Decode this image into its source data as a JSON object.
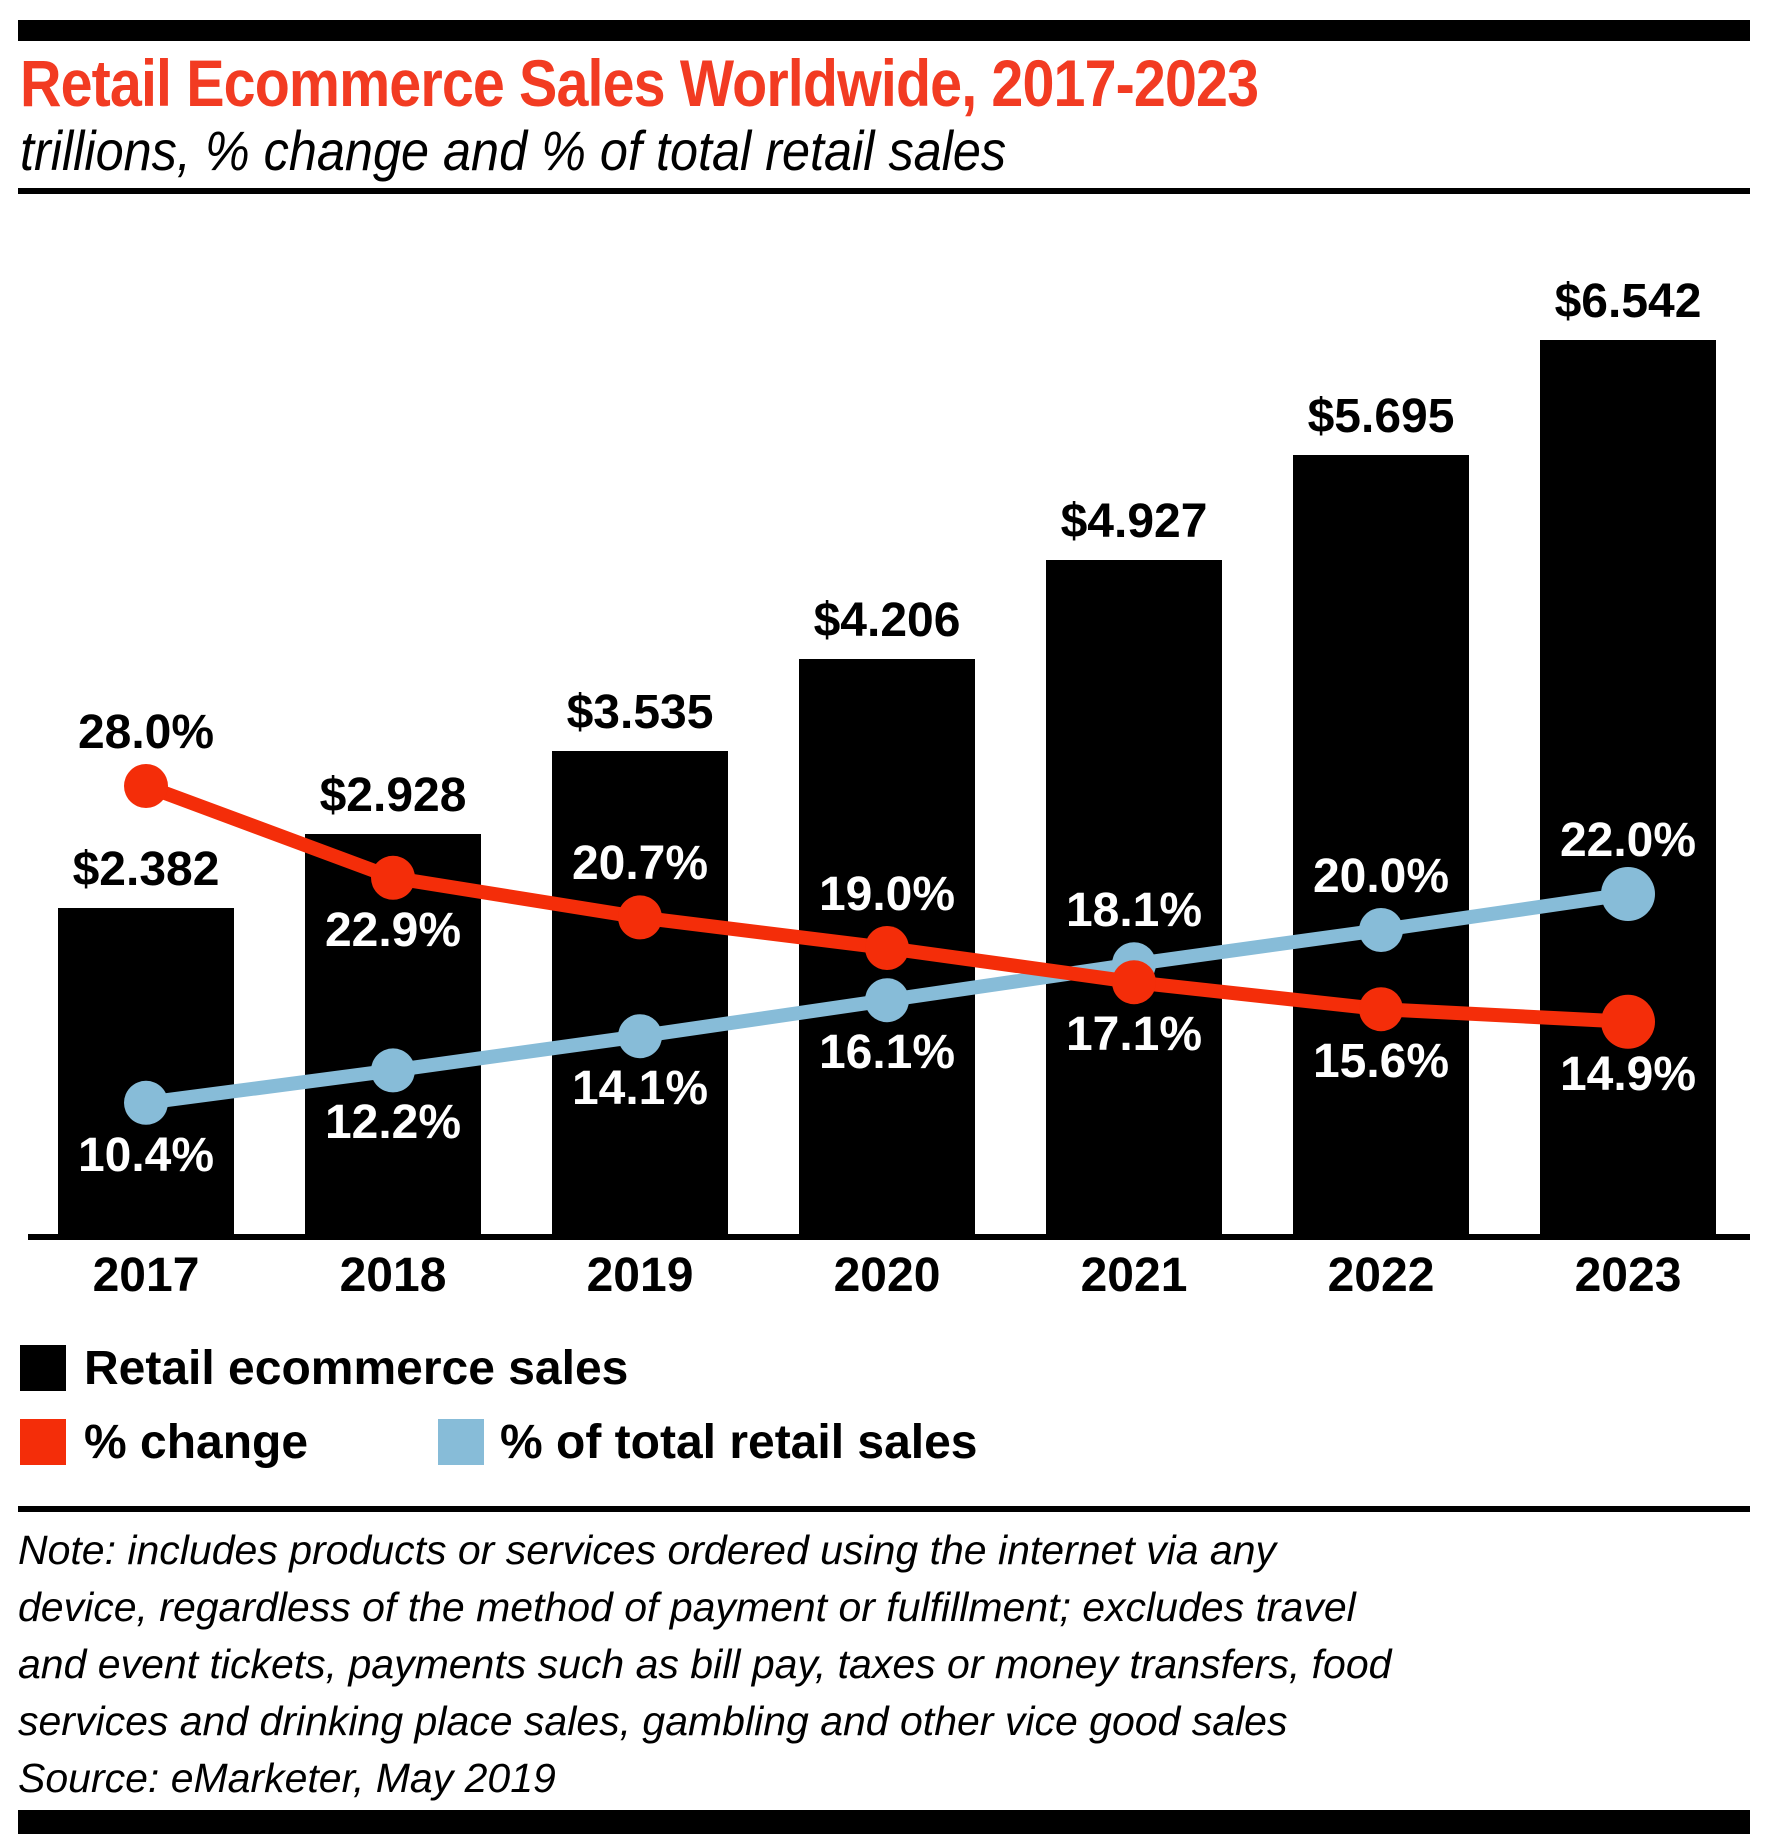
{
  "theme": {
    "title_color": "#f23b22",
    "bar_color": "#000000",
    "pct_change_color": "#f42d09",
    "pct_of_total_color": "#87bcd8",
    "label_on_bar_color": "#ffffff",
    "label_on_white_color": "#000000"
  },
  "chart_data": {
    "type": "bar+line combo",
    "title": "Retail Ecommerce Sales Worldwide, 2017-2023",
    "subtitle": "trillions, % change and % of total retail sales",
    "categories": [
      "2017",
      "2018",
      "2019",
      "2020",
      "2021",
      "2022",
      "2023"
    ],
    "grid": false,
    "legend_position": "bottom-left",
    "xlabel": "",
    "ylabel": "",
    "bar_axis_range_trillions": [
      0,
      7
    ],
    "series": [
      {
        "name": "Retail ecommerce sales",
        "type": "bar",
        "unit": "USD trillions",
        "color": "#000000",
        "values": [
          2.382,
          2.928,
          3.535,
          4.206,
          4.927,
          5.695,
          6.542
        ],
        "labels": [
          "$2.382",
          "$2.928",
          "$3.535",
          "$4.206",
          "$4.927",
          "$5.695",
          "$6.542"
        ]
      },
      {
        "name": "% change",
        "type": "line",
        "unit": "percent",
        "color": "#f42d09",
        "values": [
          28.0,
          22.9,
          20.7,
          19.0,
          17.1,
          15.6,
          14.9
        ],
        "labels": [
          "28.0%",
          "22.9%",
          "20.7%",
          "19.0%",
          "17.1%",
          "15.6%",
          "14.9%"
        ],
        "label_positions": [
          "above",
          "below",
          "above",
          "above",
          "below",
          "below",
          "below"
        ]
      },
      {
        "name": "% of total retail sales",
        "type": "line",
        "unit": "percent",
        "color": "#87bcd8",
        "values": [
          10.4,
          12.2,
          14.1,
          16.1,
          18.1,
          20.0,
          22.0
        ],
        "labels": [
          "10.4%",
          "12.2%",
          "14.1%",
          "16.1%",
          "18.1%",
          "20.0%",
          "22.0%"
        ],
        "label_positions": [
          "below",
          "below",
          "below",
          "below",
          "above",
          "above",
          "above"
        ]
      }
    ]
  },
  "legend": {
    "items": [
      {
        "label": "Retail ecommerce sales",
        "color": "#000000"
      },
      {
        "label": "% change",
        "color": "#f42d09"
      },
      {
        "label": "% of total retail sales",
        "color": "#87bcd8"
      }
    ]
  },
  "footer": {
    "note_lines": [
      "Note: includes products or services ordered using the internet via any",
      "device, regardless of the method of payment or fulfillment; excludes travel",
      "and event tickets, payments such as bill pay, taxes or money transfers, food",
      "services and drinking place sales, gambling and other vice good sales"
    ],
    "source": "Source: eMarketer, May 2019"
  }
}
